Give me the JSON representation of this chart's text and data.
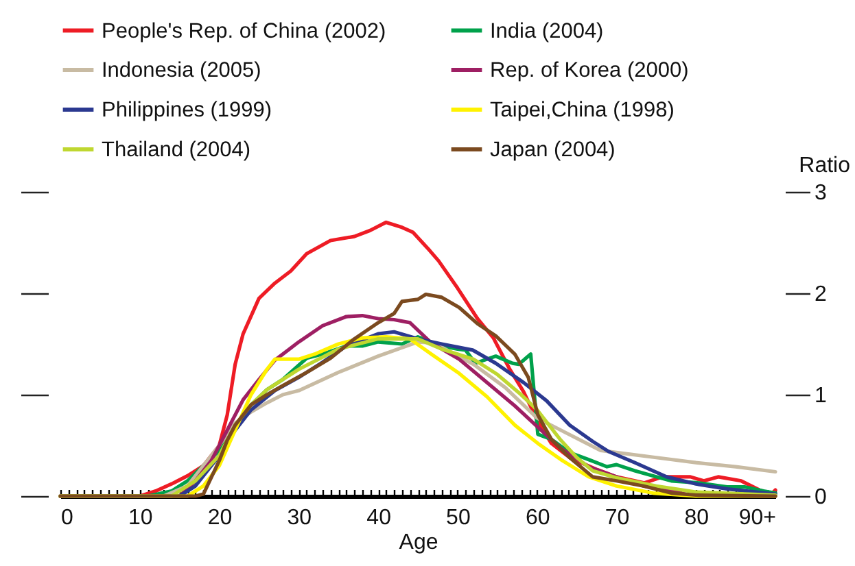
{
  "chart_data": {
    "type": "line",
    "xlabel": "Age",
    "ylabel": "Ratio",
    "legend": "top",
    "grid": false,
    "xlim": [
      0,
      90
    ],
    "xticks": [
      0,
      {
        "value": 1,
        "label": null
      },
      {
        "value": 2,
        "label": null
      },
      {
        "value": 3,
        "label": null
      },
      {
        "value": 4,
        "label": null
      },
      {
        "value": 5,
        "label": null
      },
      {
        "value": 6,
        "label": null
      },
      {
        "value": 7,
        "label": null
      },
      {
        "value": 8,
        "label": null
      },
      {
        "value": 9,
        "label": null
      },
      10,
      {
        "value": 11,
        "label": null
      },
      {
        "value": 12,
        "label": null
      },
      {
        "value": 13,
        "label": null
      },
      {
        "value": 14,
        "label": null
      },
      {
        "value": 15,
        "label": null
      },
      {
        "value": 16,
        "label": null
      },
      {
        "value": 17,
        "label": null
      },
      {
        "value": 18,
        "label": null
      },
      {
        "value": 19,
        "label": null
      },
      20,
      {
        "value": 21,
        "label": null
      },
      {
        "value": 22,
        "label": null
      },
      {
        "value": 23,
        "label": null
      },
      {
        "value": 24,
        "label": null
      },
      {
        "value": 25,
        "label": null
      },
      {
        "value": 26,
        "label": null
      },
      {
        "value": 27,
        "label": null
      },
      {
        "value": 28,
        "label": null
      },
      {
        "value": 29,
        "label": null
      },
      30,
      {
        "value": 31,
        "label": null
      },
      {
        "value": 32,
        "label": null
      },
      {
        "value": 33,
        "label": null
      },
      {
        "value": 34,
        "label": null
      },
      {
        "value": 35,
        "label": null
      },
      {
        "value": 36,
        "label": null
      },
      {
        "value": 37,
        "label": null
      },
      {
        "value": 38,
        "label": null
      },
      {
        "value": 39,
        "label": null
      },
      40,
      {
        "value": 41,
        "label": null
      },
      {
        "value": 42,
        "label": null
      },
      {
        "value": 43,
        "label": null
      },
      {
        "value": 44,
        "label": null
      },
      {
        "value": 45,
        "label": null
      },
      {
        "value": 46,
        "label": null
      },
      {
        "value": 47,
        "label": null
      },
      {
        "value": 48,
        "label": null
      },
      {
        "value": 49,
        "label": null
      },
      50,
      {
        "value": 51,
        "label": null
      },
      {
        "value": 52,
        "label": null
      },
      {
        "value": 53,
        "label": null
      },
      {
        "value": 54,
        "label": null
      },
      {
        "value": 55,
        "label": null
      },
      {
        "value": 56,
        "label": null
      },
      {
        "value": 57,
        "label": null
      },
      {
        "value": 58,
        "label": null
      },
      {
        "value": 59,
        "label": null
      },
      60,
      {
        "value": 61,
        "label": null
      },
      {
        "value": 62,
        "label": null
      },
      {
        "value": 63,
        "label": null
      },
      {
        "value": 64,
        "label": null
      },
      {
        "value": 65,
        "label": null
      },
      {
        "value": 66,
        "label": null
      },
      {
        "value": 67,
        "label": null
      },
      {
        "value": 68,
        "label": null
      },
      {
        "value": 69,
        "label": null
      },
      70,
      {
        "value": 71,
        "label": null
      },
      {
        "value": 72,
        "label": null
      },
      {
        "value": 73,
        "label": null
      },
      {
        "value": 74,
        "label": null
      },
      {
        "value": 75,
        "label": null
      },
      {
        "value": 76,
        "label": null
      },
      {
        "value": 77,
        "label": null
      },
      {
        "value": 78,
        "label": null
      },
      {
        "value": 79,
        "label": null
      },
      80,
      {
        "value": 81,
        "label": null
      },
      {
        "value": 82,
        "label": null
      },
      {
        "value": 83,
        "label": null
      },
      {
        "value": 84,
        "label": null
      },
      {
        "value": 85,
        "label": null
      },
      {
        "value": 86,
        "label": null
      },
      {
        "value": 87,
        "label": null
      },
      {
        "value": 88,
        "label": null
      },
      {
        "value": 89,
        "label": null
      },
      {
        "value": 90,
        "label": "90+"
      }
    ],
    "ylim": [
      0,
      3
    ],
    "yticks": [
      0,
      1,
      2,
      3
    ],
    "series": [
      {
        "name": "People's Rep. of China (2002)",
        "color": "#ee1c25",
        "x": [
          0,
          10,
          12,
          14,
          16,
          18,
          20,
          21,
          22,
          23,
          25,
          27,
          29,
          31,
          34,
          37,
          39,
          41,
          43,
          44.4,
          46.5,
          47.6,
          50,
          52.5,
          54.5,
          56.5,
          58.3,
          60,
          61.8,
          64.1,
          67.6,
          70,
          73.5,
          75.8,
          79.3,
          81,
          82.8,
          85.7,
          88,
          89.5,
          90
        ],
        "values": [
          0,
          0,
          0.05,
          0.12,
          0.2,
          0.3,
          0.5,
          0.8,
          1.3,
          1.6,
          1.95,
          2.1,
          2.22,
          2.39,
          2.52,
          2.56,
          2.62,
          2.7,
          2.65,
          2.6,
          2.42,
          2.32,
          2.05,
          1.75,
          1.56,
          1.26,
          1.03,
          0.75,
          0.52,
          0.38,
          0.26,
          0.19,
          0.13,
          0.19,
          0.19,
          0.15,
          0.19,
          0.15,
          0.06,
          0.02,
          0.06
        ]
      },
      {
        "name": "India (2004)",
        "color": "#00a14b",
        "x": [
          0,
          11,
          14,
          16,
          18,
          20,
          22,
          24,
          26,
          28,
          31,
          33,
          36,
          38,
          40,
          43,
          45,
          48,
          50,
          51,
          52.2,
          54.8,
          56.9,
          57.7,
          59.2,
          60.1,
          61.8,
          64.1,
          66.5,
          68.8,
          70,
          72.3,
          74.6,
          76.9,
          80.4,
          83.9,
          86.2,
          88.5,
          90
        ],
        "values": [
          0,
          0,
          0.05,
          0.15,
          0.3,
          0.45,
          0.68,
          0.9,
          1.05,
          1.15,
          1.36,
          1.4,
          1.48,
          1.48,
          1.52,
          1.5,
          1.57,
          1.48,
          1.45,
          1.44,
          1.31,
          1.38,
          1.31,
          1.3,
          1.4,
          0.61,
          0.56,
          0.43,
          0.36,
          0.29,
          0.31,
          0.25,
          0.2,
          0.15,
          0.13,
          0.09,
          0.09,
          0.05,
          0.03
        ]
      },
      {
        "name": "Indonesia (2005)",
        "color": "#c8bba3",
        "x": [
          0,
          13,
          16,
          18,
          20,
          22,
          24,
          26,
          28,
          30,
          35,
          40,
          45,
          47,
          52,
          56,
          60,
          64,
          68,
          70,
          75,
          80,
          85,
          90
        ],
        "values": [
          0,
          0,
          0.1,
          0.3,
          0.5,
          0.72,
          0.83,
          0.92,
          1.0,
          1.04,
          1.22,
          1.38,
          1.52,
          1.51,
          1.3,
          1.07,
          0.77,
          0.61,
          0.45,
          0.43,
          0.38,
          0.33,
          0.29,
          0.24
        ]
      },
      {
        "name": "Rep. of Korea (2000)",
        "color": "#9e1f63",
        "x": [
          0,
          15,
          17,
          19,
          21,
          23,
          25,
          27,
          30,
          33,
          36,
          38,
          40,
          42,
          44,
          46.7,
          50.2,
          53.7,
          57.2,
          60.1,
          63,
          66.5,
          70,
          73.4,
          76.9,
          79.2,
          90
        ],
        "values": [
          0,
          0,
          0.15,
          0.35,
          0.65,
          0.95,
          1.15,
          1.34,
          1.52,
          1.68,
          1.77,
          1.78,
          1.75,
          1.74,
          1.71,
          1.51,
          1.35,
          1.12,
          0.89,
          0.68,
          0.47,
          0.29,
          0.19,
          0.1,
          0.05,
          0.01,
          0
        ]
      },
      {
        "name": "Philippines (1999)",
        "color": "#2b3990",
        "x": [
          0,
          15,
          17,
          20,
          22,
          24,
          27,
          30,
          33,
          36,
          40,
          42,
          45,
          48,
          51.9,
          54.8,
          58.3,
          61.2,
          64.1,
          67,
          69,
          72.3,
          76.3,
          80,
          84,
          90
        ],
        "values": [
          0,
          0,
          0.1,
          0.4,
          0.65,
          0.85,
          1.04,
          1.17,
          1.32,
          1.48,
          1.6,
          1.62,
          1.55,
          1.5,
          1.44,
          1.31,
          1.12,
          0.94,
          0.7,
          0.54,
          0.44,
          0.33,
          0.19,
          0.12,
          0.07,
          0.02
        ]
      },
      {
        "name": "Taipei,China (1998)",
        "color": "#fff200",
        "x": [
          0,
          16,
          18,
          20,
          22,
          24,
          26,
          27,
          30,
          32,
          35,
          38,
          41,
          44,
          46.7,
          50.2,
          53.7,
          57.2,
          60.1,
          63,
          66.5,
          70,
          74.6,
          80,
          90
        ],
        "values": [
          0,
          0,
          0.1,
          0.3,
          0.65,
          1.0,
          1.25,
          1.35,
          1.35,
          1.4,
          1.5,
          1.56,
          1.57,
          1.55,
          1.4,
          1.21,
          0.98,
          0.7,
          0.52,
          0.36,
          0.19,
          0.1,
          0.03,
          0,
          0
        ]
      },
      {
        "name": "Thailand (2004)",
        "color": "#bfd730",
        "x": [
          0,
          14,
          17,
          20,
          22,
          24,
          26,
          30,
          35,
          40,
          45,
          48,
          52,
          55,
          58,
          60,
          63,
          65,
          67,
          70,
          75,
          80,
          90
        ],
        "values": [
          0,
          0,
          0.15,
          0.4,
          0.7,
          0.9,
          1.05,
          1.25,
          1.45,
          1.55,
          1.55,
          1.45,
          1.35,
          1.2,
          1.0,
          0.85,
          0.55,
          0.38,
          0.25,
          0.18,
          0.1,
          0.04,
          0.01
        ]
      },
      {
        "name": "Japan (2004)",
        "color": "#7b4a1f",
        "x": [
          0,
          17,
          18,
          20,
          21,
          22,
          24,
          26,
          28,
          31,
          34,
          37,
          40,
          42,
          43,
          45,
          46,
          48,
          50.2,
          52.5,
          54.8,
          57.2,
          58.9,
          60.1,
          61.8,
          64.1,
          67,
          70,
          73.4,
          76.9,
          80,
          90
        ],
        "values": [
          0,
          0,
          0.02,
          0.35,
          0.55,
          0.7,
          0.9,
          1.0,
          1.09,
          1.22,
          1.36,
          1.55,
          1.71,
          1.8,
          1.92,
          1.94,
          1.99,
          1.96,
          1.86,
          1.7,
          1.58,
          1.4,
          1.17,
          0.8,
          0.56,
          0.38,
          0.19,
          0.15,
          0.1,
          0.03,
          0.01,
          0
        ]
      }
    ]
  }
}
